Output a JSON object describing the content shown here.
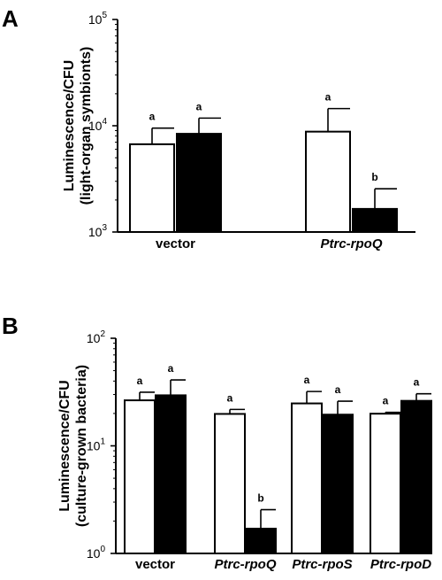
{
  "chart_data": [
    {
      "panel": "A",
      "type": "bar",
      "scale": "log",
      "ylabel_lines": [
        "Luminescence/CFU",
        "(light-organ symbionts)"
      ],
      "ylim": [
        1000,
        100000
      ],
      "yticks": [
        {
          "value": 1000,
          "base": "10",
          "exp": "3"
        },
        {
          "value": 10000,
          "base": "10",
          "exp": "4"
        },
        {
          "value": 100000,
          "base": "10",
          "exp": "5"
        }
      ],
      "categories": [
        {
          "label": "vector",
          "italic": false
        },
        {
          "label": "Ptrc-rpoQ",
          "italic": true
        }
      ],
      "series": [
        {
          "fill": "#ffffff",
          "values": [
            6700,
            8800
          ],
          "errors": [
            9500,
            14500
          ],
          "sig": [
            "a",
            "a"
          ]
        },
        {
          "fill": "#000000",
          "values": [
            8400,
            1650
          ],
          "errors": [
            11800,
            2550
          ],
          "sig": [
            "a",
            "b"
          ]
        }
      ]
    },
    {
      "panel": "B",
      "type": "bar",
      "scale": "log",
      "ylabel_lines": [
        "Luminescence/CFU",
        "(culture-grown bacteria)"
      ],
      "ylim": [
        1,
        100
      ],
      "yticks": [
        {
          "value": 1,
          "base": "10",
          "exp": "0"
        },
        {
          "value": 10,
          "base": "10",
          "exp": "1"
        },
        {
          "value": 100,
          "base": "10",
          "exp": "2"
        }
      ],
      "categories": [
        {
          "label": "vector",
          "italic": false
        },
        {
          "label": "Ptrc-rpoQ",
          "italic": true
        },
        {
          "label": "Ptrc-rpoS",
          "italic": true
        },
        {
          "label": "Ptrc-rpoD",
          "italic": true
        }
      ],
      "series": [
        {
          "fill": "#ffffff",
          "values": [
            26.5,
            19.8,
            24.8,
            19.9
          ],
          "errors": [
            31.5,
            21.8,
            32,
            20.5
          ],
          "sig": [
            "a",
            "a",
            "a",
            "a"
          ]
        },
        {
          "fill": "#000000",
          "values": [
            29.5,
            1.7,
            19.5,
            26.2
          ],
          "errors": [
            41,
            2.55,
            26,
            30.5
          ],
          "sig": [
            "a",
            "b",
            "a",
            "a"
          ]
        }
      ]
    }
  ]
}
